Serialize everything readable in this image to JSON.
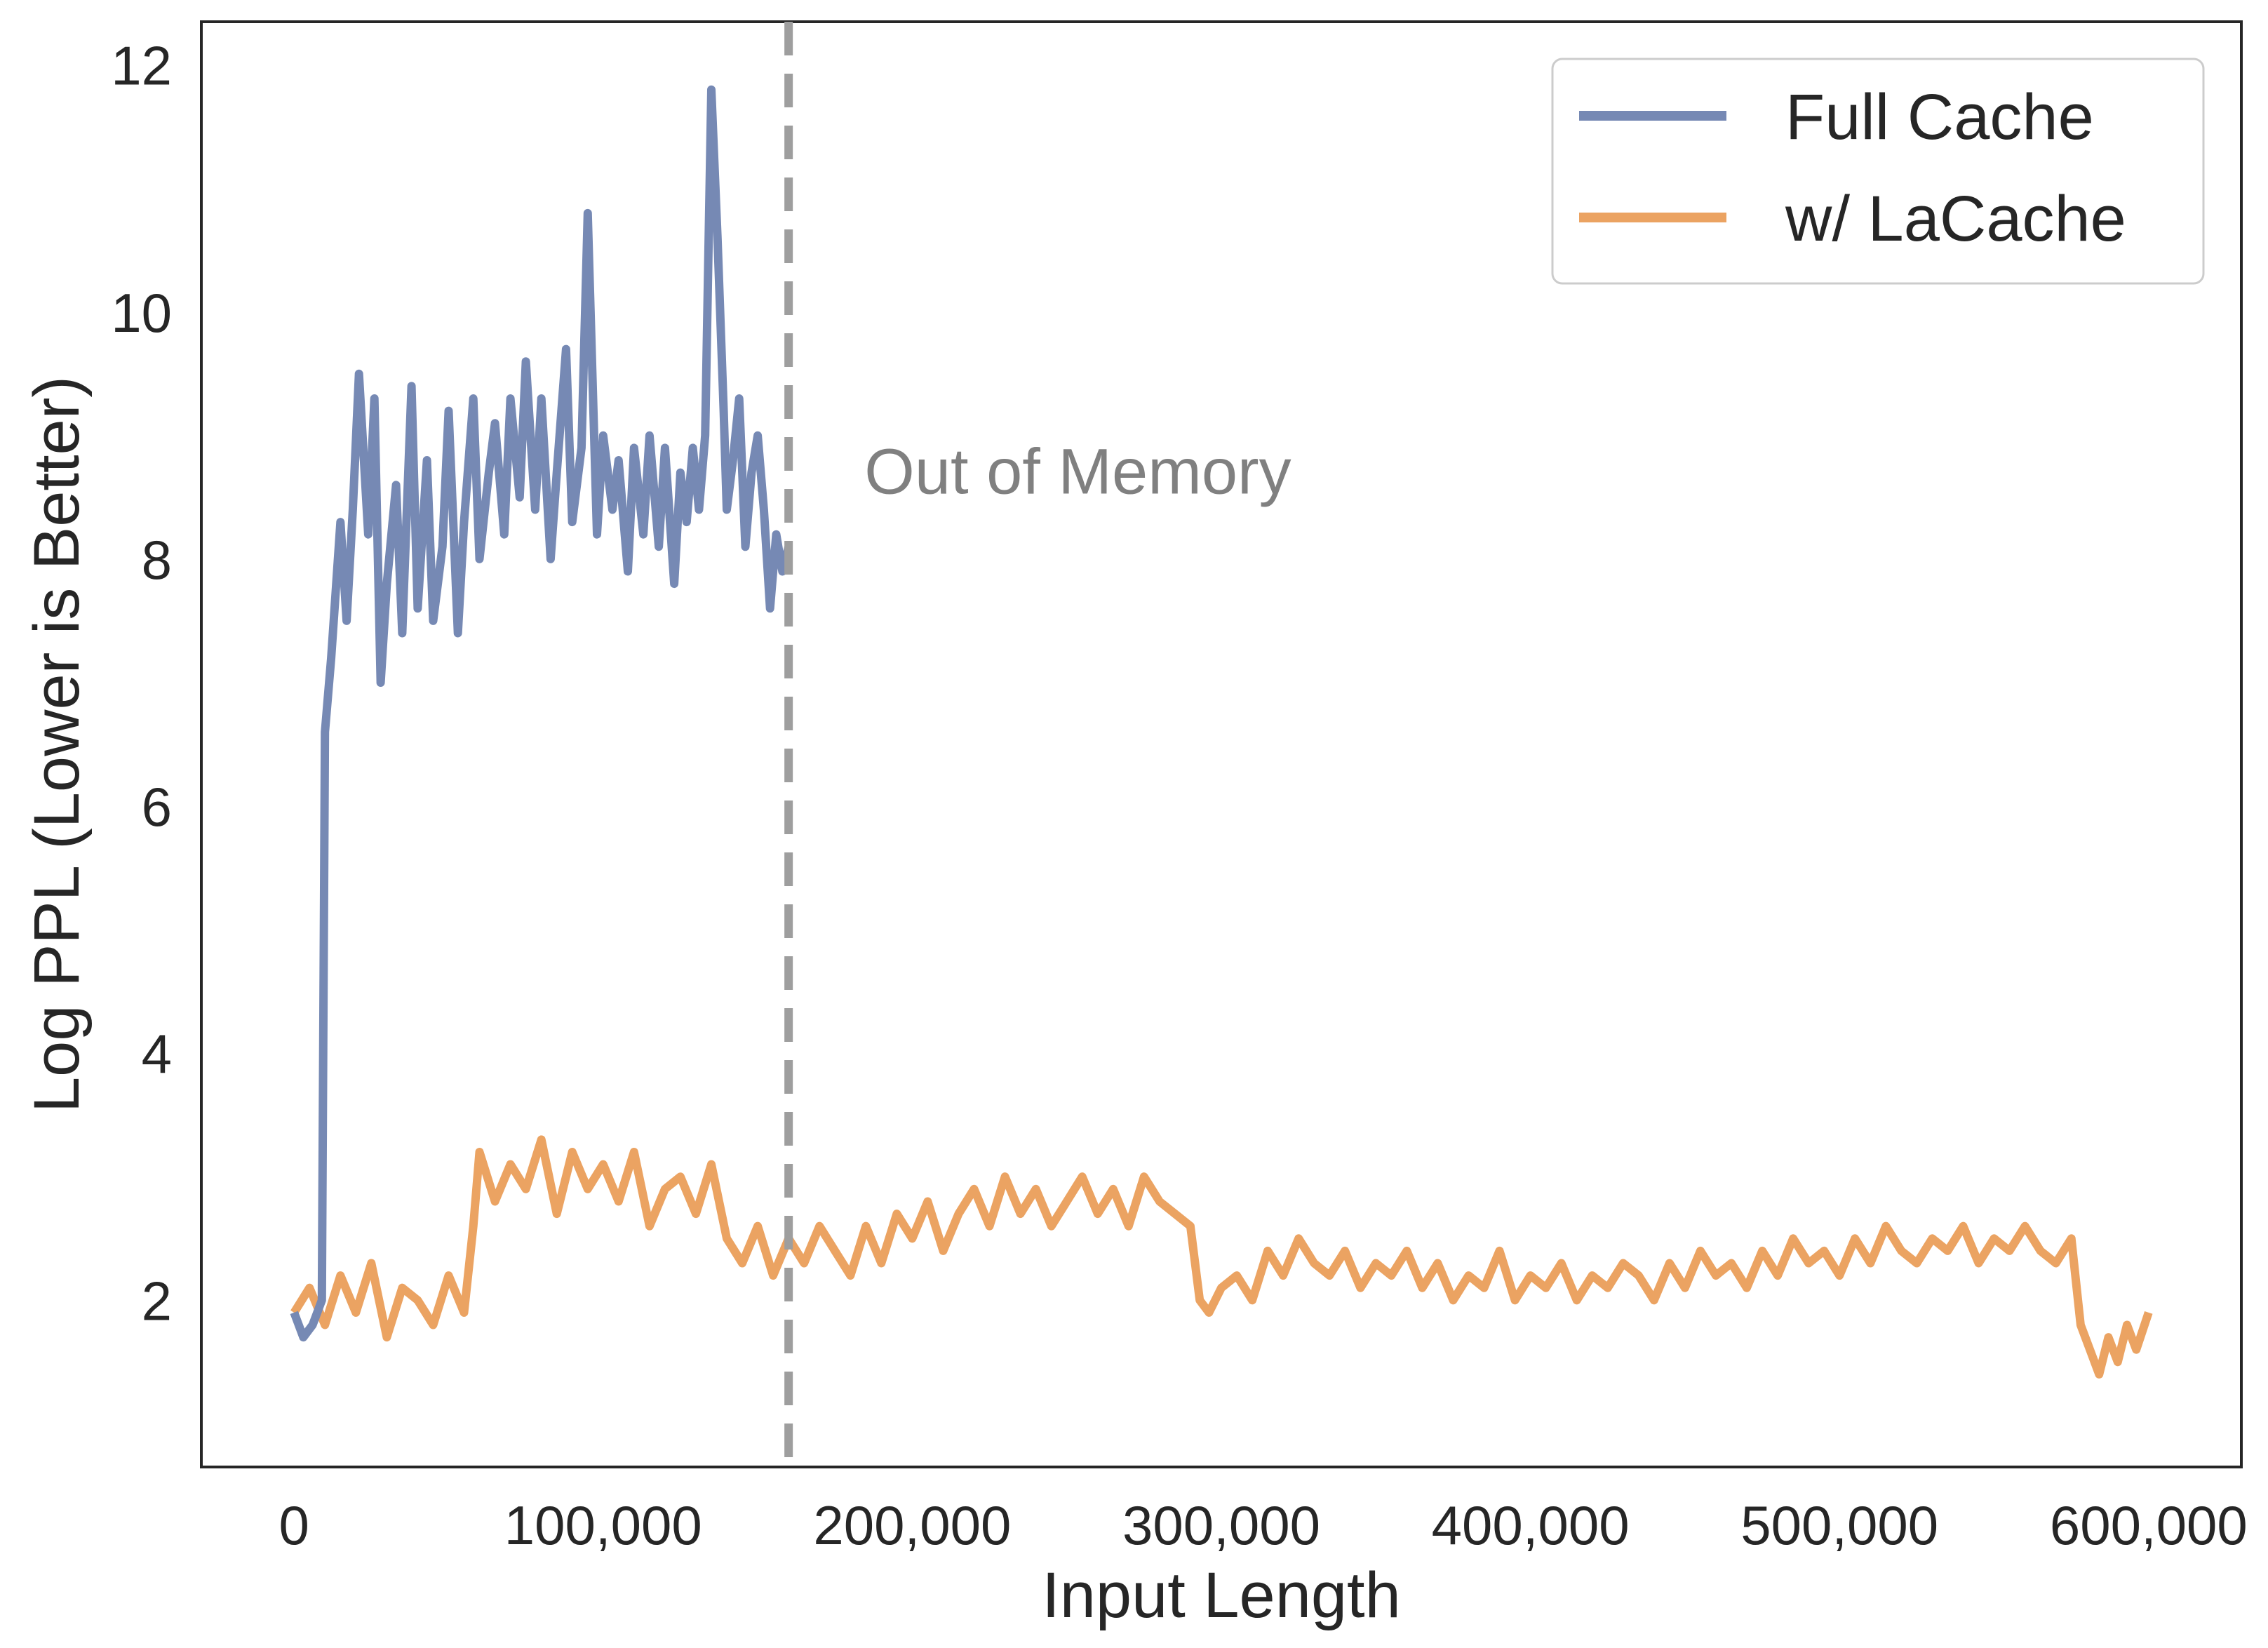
{
  "chart_data": {
    "type": "line",
    "title": "",
    "xlabel": "Input Length",
    "ylabel": "Log PPL (Lower is Better)",
    "xlim": [
      -30000,
      630000
    ],
    "ylim": [
      0.65,
      12.35
    ],
    "xticks": [
      0,
      100000,
      200000,
      300000,
      400000,
      500000,
      600000
    ],
    "xtick_labels": [
      "0",
      "100,000",
      "200,000",
      "300,000",
      "400,000",
      "500,000",
      "600,000"
    ],
    "yticks": [
      2,
      4,
      6,
      8,
      10,
      12
    ],
    "ytick_labels": [
      "2",
      "4",
      "6",
      "8",
      "10",
      "12"
    ],
    "grid": false,
    "legend_position": "top-right",
    "annotation": {
      "text": "Out of Memory",
      "x": 180000,
      "y": 8.7
    },
    "vline": {
      "x": 160000,
      "style": "dashed",
      "color": "#9e9e9e"
    },
    "series": [
      {
        "name": "Full Cache",
        "color": "#7689b4",
        "x": [
          0,
          3000,
          6000,
          9000,
          10000,
          12000,
          15000,
          17000,
          19000,
          21000,
          24000,
          26000,
          28000,
          30000,
          33000,
          35000,
          38000,
          40000,
          43000,
          45000,
          48000,
          50000,
          53000,
          55000,
          58000,
          60000,
          63000,
          65000,
          68000,
          70000,
          73000,
          75000,
          78000,
          80000,
          83000,
          85000,
          88000,
          90000,
          93000,
          95000,
          98000,
          100000,
          103000,
          105000,
          108000,
          110000,
          113000,
          115000,
          118000,
          120000,
          123000,
          125000,
          127000,
          129000,
          131000,
          133000,
          135000,
          137000,
          139000,
          140000,
          142000,
          144000,
          146000,
          148000,
          150000,
          152000,
          154000,
          156000,
          158000,
          160000
        ],
        "y": [
          1.9,
          1.7,
          1.8,
          2.0,
          6.6,
          7.2,
          8.3,
          7.5,
          8.4,
          9.5,
          8.2,
          9.3,
          7.0,
          7.8,
          8.6,
          7.4,
          9.4,
          7.6,
          8.8,
          7.5,
          8.1,
          9.2,
          7.4,
          8.3,
          9.3,
          8.0,
          8.7,
          9.1,
          8.2,
          9.3,
          8.5,
          9.6,
          8.4,
          9.3,
          8.0,
          8.7,
          9.7,
          8.3,
          8.9,
          10.8,
          8.2,
          9.0,
          8.4,
          8.8,
          7.9,
          8.9,
          8.2,
          9.0,
          8.1,
          8.9,
          7.8,
          8.7,
          8.3,
          8.9,
          8.4,
          9.0,
          11.8,
          10.6,
          9.2,
          8.4,
          8.8,
          9.3,
          8.1,
          8.7,
          9.0,
          8.4,
          7.6,
          8.2,
          7.9,
          8.1
        ]
      },
      {
        "name": "w/ LaCache",
        "color": "#eba362",
        "x": [
          0,
          5000,
          10000,
          15000,
          20000,
          25000,
          30000,
          35000,
          40000,
          45000,
          50000,
          55000,
          58000,
          60000,
          65000,
          70000,
          75000,
          80000,
          85000,
          90000,
          95000,
          100000,
          105000,
          110000,
          115000,
          120000,
          125000,
          130000,
          135000,
          140000,
          145000,
          150000,
          155000,
          160000,
          165000,
          170000,
          175000,
          180000,
          185000,
          190000,
          195000,
          200000,
          205000,
          210000,
          215000,
          220000,
          225000,
          230000,
          235000,
          240000,
          245000,
          250000,
          255000,
          260000,
          265000,
          270000,
          275000,
          280000,
          285000,
          290000,
          293000,
          296000,
          300000,
          305000,
          310000,
          315000,
          320000,
          325000,
          330000,
          335000,
          340000,
          345000,
          350000,
          355000,
          360000,
          365000,
          370000,
          375000,
          380000,
          385000,
          390000,
          395000,
          400000,
          405000,
          410000,
          415000,
          420000,
          425000,
          430000,
          435000,
          440000,
          445000,
          450000,
          455000,
          460000,
          465000,
          470000,
          475000,
          480000,
          485000,
          490000,
          495000,
          500000,
          505000,
          510000,
          515000,
          520000,
          525000,
          530000,
          535000,
          540000,
          545000,
          550000,
          555000,
          560000,
          565000,
          570000,
          575000,
          578000,
          581000,
          584000,
          587000,
          590000,
          593000,
          596000,
          600000
        ],
        "y": [
          1.9,
          2.1,
          1.8,
          2.2,
          1.9,
          2.3,
          1.7,
          2.1,
          2.0,
          1.8,
          2.2,
          1.9,
          2.6,
          3.2,
          2.8,
          3.1,
          2.9,
          3.3,
          2.7,
          3.2,
          2.9,
          3.1,
          2.8,
          3.2,
          2.6,
          2.9,
          3.0,
          2.7,
          3.1,
          2.5,
          2.3,
          2.6,
          2.2,
          2.5,
          2.3,
          2.6,
          2.4,
          2.2,
          2.6,
          2.3,
          2.7,
          2.5,
          2.8,
          2.4,
          2.7,
          2.9,
          2.6,
          3.0,
          2.7,
          2.9,
          2.6,
          2.8,
          3.0,
          2.7,
          2.9,
          2.6,
          3.0,
          2.8,
          2.7,
          2.6,
          2.0,
          1.9,
          2.1,
          2.2,
          2.0,
          2.4,
          2.2,
          2.5,
          2.3,
          2.2,
          2.4,
          2.1,
          2.3,
          2.2,
          2.4,
          2.1,
          2.3,
          2.0,
          2.2,
          2.1,
          2.4,
          2.0,
          2.2,
          2.1,
          2.3,
          2.0,
          2.2,
          2.1,
          2.3,
          2.2,
          2.0,
          2.3,
          2.1,
          2.4,
          2.2,
          2.3,
          2.1,
          2.4,
          2.2,
          2.5,
          2.3,
          2.4,
          2.2,
          2.5,
          2.3,
          2.6,
          2.4,
          2.3,
          2.5,
          2.4,
          2.6,
          2.3,
          2.5,
          2.4,
          2.6,
          2.4,
          2.3,
          2.5,
          1.8,
          1.6,
          1.4,
          1.7,
          1.5,
          1.8,
          1.6,
          1.9
        ]
      }
    ]
  }
}
